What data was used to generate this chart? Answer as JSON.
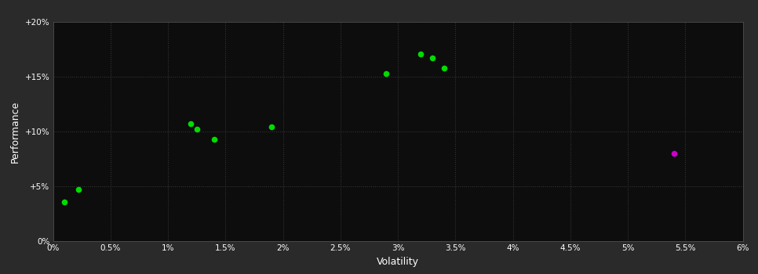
{
  "xlabel": "Volatility",
  "ylabel": "Performance",
  "background_color": "#2a2a2a",
  "plot_bg_color": "#0d0d0d",
  "grid_color": "#3a3a3a",
  "text_color": "#ffffff",
  "xlim": [
    0,
    0.06
  ],
  "ylim": [
    0,
    0.2
  ],
  "xticks": [
    0,
    0.005,
    0.01,
    0.015,
    0.02,
    0.025,
    0.03,
    0.035,
    0.04,
    0.045,
    0.05,
    0.055,
    0.06
  ],
  "yticks": [
    0,
    0.05,
    0.1,
    0.15,
    0.2
  ],
  "xtick_labels": [
    "0%",
    "0.5%",
    "1%",
    "1.5%",
    "2%",
    "2.5%",
    "3%",
    "3.5%",
    "4%",
    "4.5%",
    "5%",
    "5.5%",
    "6%"
  ],
  "ytick_labels": [
    "0%",
    "+5%",
    "+10%",
    "+15%",
    "+20%"
  ],
  "green_points": [
    [
      0.001,
      0.036
    ],
    [
      0.0022,
      0.047
    ],
    [
      0.012,
      0.107
    ],
    [
      0.0125,
      0.102
    ],
    [
      0.014,
      0.093
    ],
    [
      0.019,
      0.104
    ],
    [
      0.029,
      0.153
    ],
    [
      0.032,
      0.171
    ],
    [
      0.033,
      0.167
    ],
    [
      0.034,
      0.158
    ]
  ],
  "magenta_points": [
    [
      0.054,
      0.08
    ]
  ],
  "green_color": "#00dd00",
  "magenta_color": "#cc00cc",
  "marker_size": 30
}
